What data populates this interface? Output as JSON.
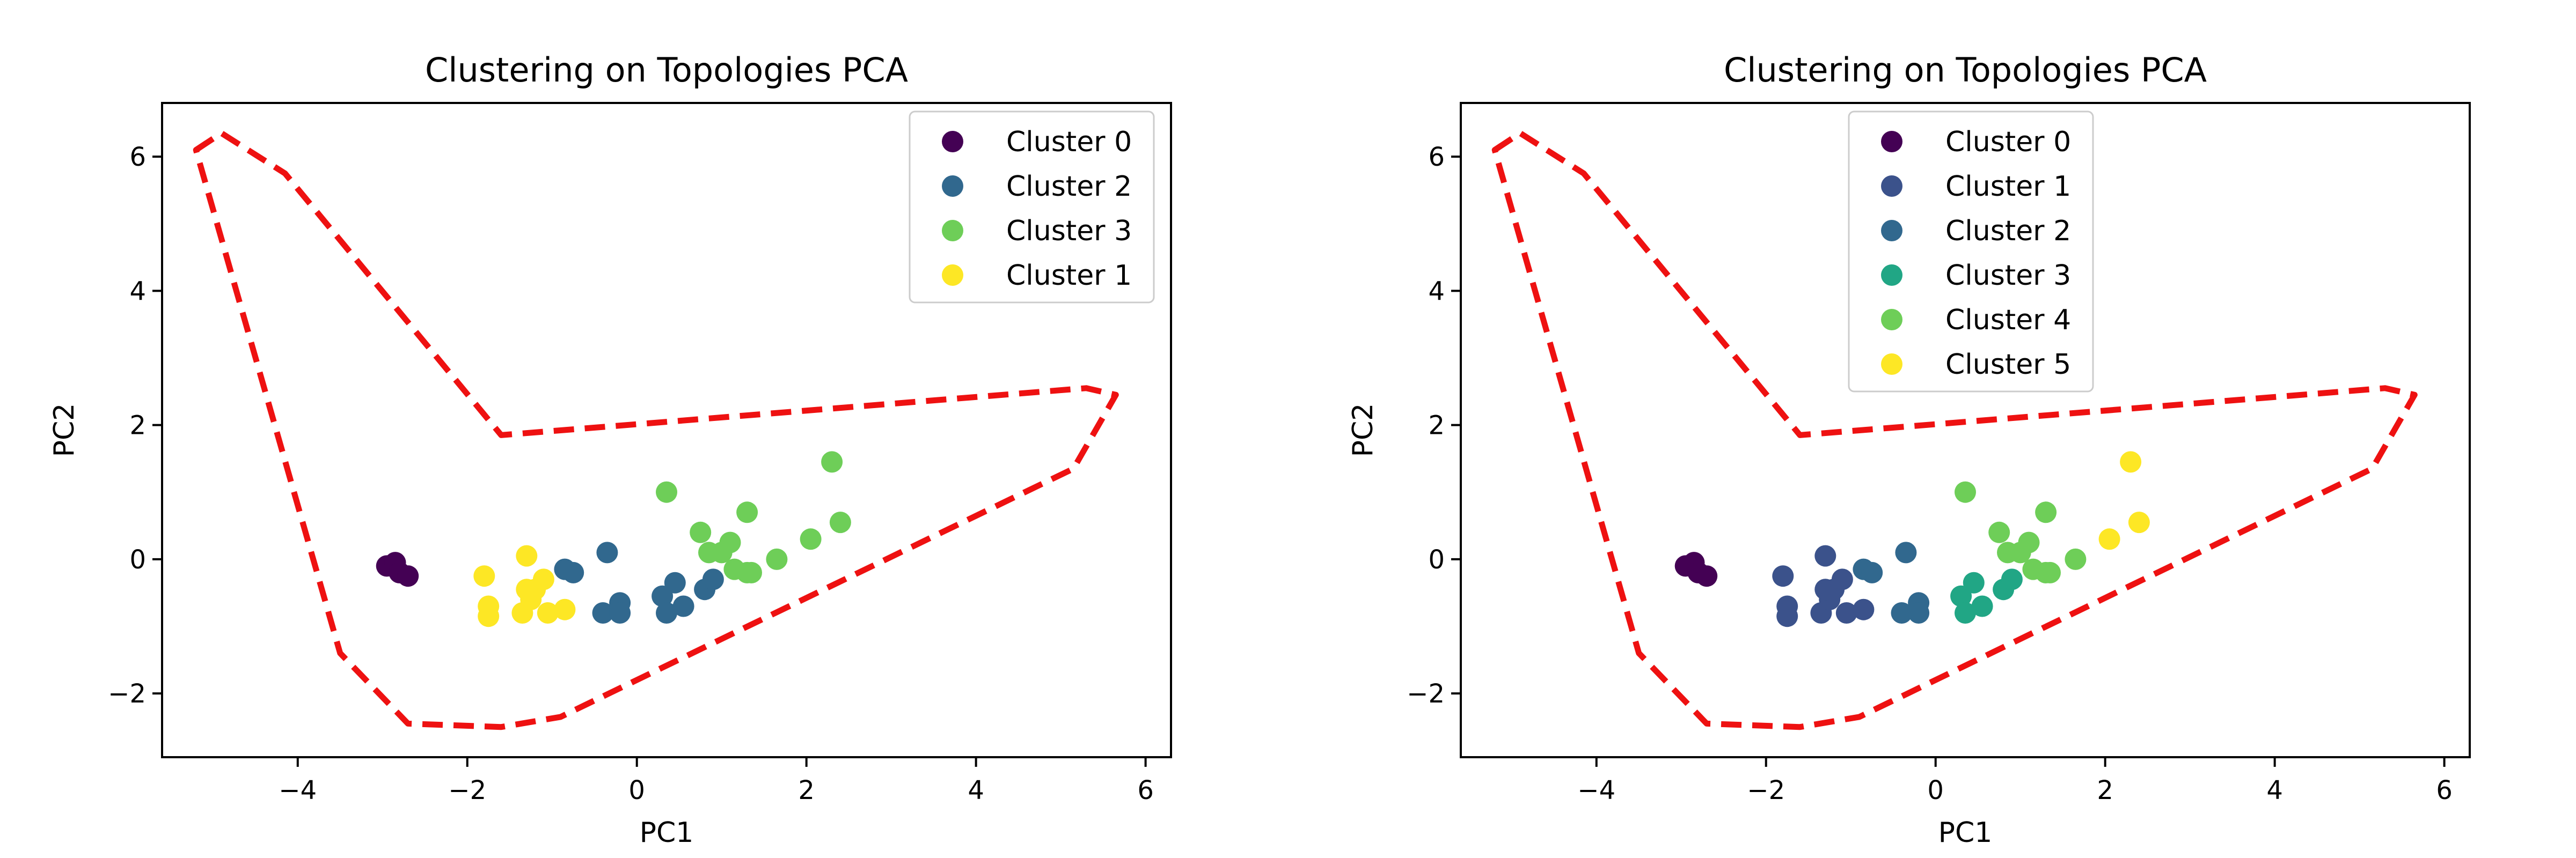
{
  "chart_data": [
    {
      "type": "scatter",
      "title": "Clustering on Topologies PCA",
      "xlabel": "PC1",
      "ylabel": "PC2",
      "xlim": [
        -5.6,
        6.3
      ],
      "ylim": [
        -2.95,
        6.8
      ],
      "xticks": [
        -4,
        -2,
        0,
        2,
        4,
        6
      ],
      "yticks": [
        -2,
        0,
        2,
        4,
        6
      ],
      "tick_labels_x": [
        "−4",
        "−2",
        "0",
        "2",
        "4",
        "6"
      ],
      "tick_labels_y": [
        "−2",
        "0",
        "2",
        "4",
        "6"
      ],
      "legend": "top-right",
      "boundary": {
        "color": "#ee1111",
        "style": "dashed",
        "points": [
          [
            -5.2,
            6.1
          ],
          [
            -4.9,
            6.35
          ],
          [
            -4.15,
            5.75
          ],
          [
            -1.6,
            1.85
          ],
          [
            5.3,
            2.55
          ],
          [
            5.65,
            2.45
          ],
          [
            5.15,
            1.35
          ],
          [
            -0.9,
            -2.35
          ],
          [
            -1.6,
            -2.5
          ],
          [
            -2.7,
            -2.45
          ],
          [
            -3.5,
            -1.4
          ]
        ]
      },
      "series": [
        {
          "name": "Cluster 0",
          "color": "#440154",
          "points": [
            [
              -2.95,
              -0.1
            ],
            [
              -2.85,
              -0.05
            ],
            [
              -2.8,
              -0.2
            ],
            [
              -2.7,
              -0.25
            ]
          ]
        },
        {
          "name": "Cluster 2",
          "color": "#31688e",
          "points": [
            [
              -0.85,
              -0.15
            ],
            [
              -0.75,
              -0.2
            ],
            [
              -0.35,
              0.1
            ],
            [
              -0.4,
              -0.8
            ],
            [
              -0.2,
              -0.65
            ],
            [
              -0.2,
              -0.8
            ],
            [
              0.3,
              -0.55
            ],
            [
              0.35,
              -0.8
            ],
            [
              0.45,
              -0.35
            ],
            [
              0.55,
              -0.7
            ],
            [
              0.8,
              -0.45
            ],
            [
              0.9,
              -0.3
            ]
          ]
        },
        {
          "name": "Cluster 3",
          "color": "#6ece58",
          "points": [
            [
              0.35,
              1.0
            ],
            [
              0.75,
              0.4
            ],
            [
              0.85,
              0.1
            ],
            [
              1.0,
              0.1
            ],
            [
              1.1,
              0.25
            ],
            [
              1.15,
              -0.15
            ],
            [
              1.3,
              0.7
            ],
            [
              1.3,
              -0.2
            ],
            [
              1.35,
              -0.2
            ],
            [
              1.65,
              0.0
            ],
            [
              2.05,
              0.3
            ],
            [
              2.3,
              1.45
            ],
            [
              2.4,
              0.55
            ]
          ]
        },
        {
          "name": "Cluster 1",
          "color": "#fde725",
          "points": [
            [
              -1.8,
              -0.25
            ],
            [
              -1.75,
              -0.7
            ],
            [
              -1.75,
              -0.85
            ],
            [
              -1.3,
              0.05
            ],
            [
              -1.35,
              -0.8
            ],
            [
              -1.2,
              -0.45
            ],
            [
              -1.25,
              -0.6
            ],
            [
              -1.1,
              -0.3
            ],
            [
              -1.05,
              -0.8
            ],
            [
              -0.85,
              -0.75
            ],
            [
              -1.3,
              -0.45
            ]
          ]
        }
      ]
    },
    {
      "type": "scatter",
      "title": "Clustering on Topologies PCA",
      "xlabel": "PC1",
      "ylabel": "PC2",
      "xlim": [
        -5.6,
        6.3
      ],
      "ylim": [
        -2.95,
        6.8
      ],
      "xticks": [
        -4,
        -2,
        0,
        2,
        4,
        6
      ],
      "yticks": [
        -2,
        0,
        2,
        4,
        6
      ],
      "tick_labels_x": [
        "−4",
        "−2",
        "0",
        "2",
        "4",
        "6"
      ],
      "tick_labels_y": [
        "−2",
        "0",
        "2",
        "4",
        "6"
      ],
      "legend": "top-center",
      "boundary": {
        "color": "#ee1111",
        "style": "dashed",
        "points": [
          [
            -5.2,
            6.1
          ],
          [
            -4.9,
            6.35
          ],
          [
            -4.15,
            5.75
          ],
          [
            -1.6,
            1.85
          ],
          [
            5.3,
            2.55
          ],
          [
            5.65,
            2.45
          ],
          [
            5.15,
            1.35
          ],
          [
            -0.9,
            -2.35
          ],
          [
            -1.6,
            -2.5
          ],
          [
            -2.7,
            -2.45
          ],
          [
            -3.5,
            -1.4
          ]
        ]
      },
      "series": [
        {
          "name": "Cluster 0",
          "color": "#440154",
          "points": [
            [
              -2.95,
              -0.1
            ],
            [
              -2.85,
              -0.05
            ],
            [
              -2.8,
              -0.2
            ],
            [
              -2.7,
              -0.25
            ]
          ]
        },
        {
          "name": "Cluster 1",
          "color": "#3b528b",
          "points": [
            [
              -1.8,
              -0.25
            ],
            [
              -1.75,
              -0.7
            ],
            [
              -1.75,
              -0.85
            ],
            [
              -1.3,
              0.05
            ],
            [
              -1.35,
              -0.8
            ],
            [
              -1.2,
              -0.45
            ],
            [
              -1.25,
              -0.6
            ],
            [
              -1.1,
              -0.3
            ],
            [
              -1.05,
              -0.8
            ],
            [
              -0.85,
              -0.75
            ],
            [
              -1.3,
              -0.45
            ]
          ]
        },
        {
          "name": "Cluster 2",
          "color": "#31688e",
          "points": [
            [
              -0.85,
              -0.15
            ],
            [
              -0.75,
              -0.2
            ],
            [
              -0.35,
              0.1
            ],
            [
              -0.4,
              -0.8
            ],
            [
              -0.2,
              -0.65
            ],
            [
              -0.2,
              -0.8
            ]
          ]
        },
        {
          "name": "Cluster 3",
          "color": "#21a685",
          "points": [
            [
              0.3,
              -0.55
            ],
            [
              0.35,
              -0.8
            ],
            [
              0.45,
              -0.35
            ],
            [
              0.55,
              -0.7
            ],
            [
              0.8,
              -0.45
            ],
            [
              0.9,
              -0.3
            ]
          ]
        },
        {
          "name": "Cluster 4",
          "color": "#6ece58",
          "points": [
            [
              0.35,
              1.0
            ],
            [
              0.75,
              0.4
            ],
            [
              0.85,
              0.1
            ],
            [
              1.0,
              0.1
            ],
            [
              1.1,
              0.25
            ],
            [
              1.15,
              -0.15
            ],
            [
              1.3,
              0.7
            ],
            [
              1.3,
              -0.2
            ],
            [
              1.35,
              -0.2
            ],
            [
              1.65,
              0.0
            ]
          ]
        },
        {
          "name": "Cluster 5",
          "color": "#fde725",
          "points": [
            [
              2.05,
              0.3
            ],
            [
              2.3,
              1.45
            ],
            [
              2.4,
              0.55
            ]
          ]
        }
      ]
    }
  ]
}
